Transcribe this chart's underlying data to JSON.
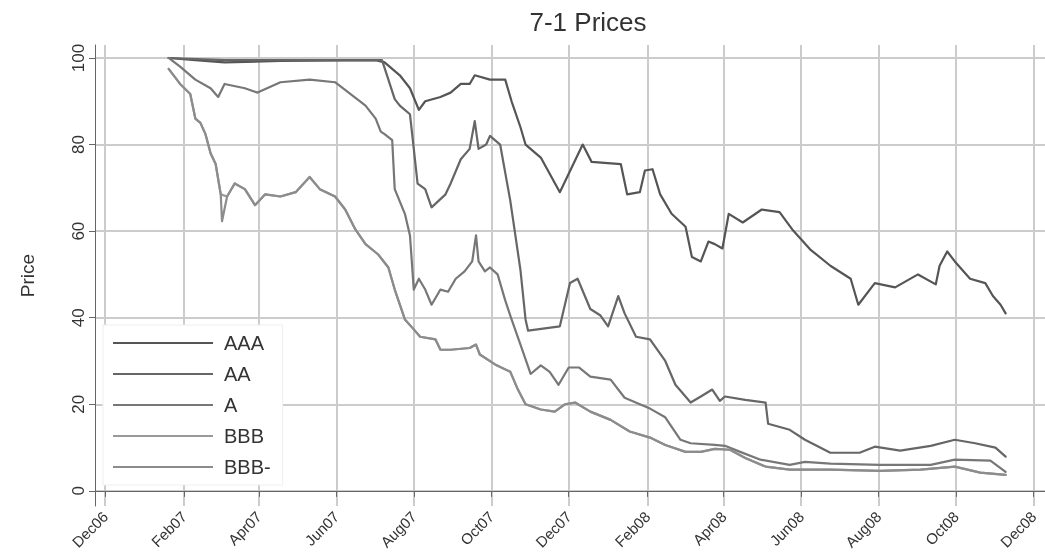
{
  "chart_data": {
    "type": "line",
    "title": "7-1 Prices",
    "ylabel": "Price",
    "xlim": [
      "2006-11-23",
      "2008-12-10"
    ],
    "ylim": [
      -3.5,
      103
    ],
    "xticks": [
      {
        "value": "2006-12-01",
        "label": "Dec06"
      },
      {
        "value": "2007-02-01",
        "label": "Feb07"
      },
      {
        "value": "2007-04-01",
        "label": "Apr07"
      },
      {
        "value": "2007-06-01",
        "label": "Jun07"
      },
      {
        "value": "2007-08-01",
        "label": "Aug07"
      },
      {
        "value": "2007-10-01",
        "label": "Oct07"
      },
      {
        "value": "2007-12-01",
        "label": "Dec07"
      },
      {
        "value": "2008-02-01",
        "label": "Feb08"
      },
      {
        "value": "2008-04-01",
        "label": "Apr08"
      },
      {
        "value": "2008-06-01",
        "label": "Jun08"
      },
      {
        "value": "2008-08-01",
        "label": "Aug08"
      },
      {
        "value": "2008-10-01",
        "label": "Oct08"
      },
      {
        "value": "2008-12-01",
        "label": "Dec08"
      }
    ],
    "yticks": [
      0,
      20,
      40,
      60,
      80,
      100
    ],
    "grid": true,
    "legend": "bottom left",
    "line_style": "solid",
    "marker": "none",
    "series": [
      {
        "name": "AAA",
        "color": "#555555",
        "x": [
          "2007-01-20",
          "2007-02-10",
          "2007-03-05",
          "2007-04-18",
          "2007-07-02",
          "2007-07-09",
          "2007-07-21",
          "2007-07-29",
          "2007-08-05",
          "2007-08-10",
          "2007-08-22",
          "2007-08-30",
          "2007-09-07",
          "2007-09-14",
          "2007-09-18",
          "2007-09-30",
          "2007-10-08",
          "2007-10-12",
          "2007-10-17",
          "2007-10-24",
          "2007-10-28",
          "2007-11-09",
          "2007-11-24",
          "2007-12-12",
          "2007-12-19",
          "2008-01-11",
          "2008-01-16",
          "2008-01-26",
          "2008-01-30",
          "2008-02-05",
          "2008-02-11",
          "2008-02-20",
          "2008-03-02",
          "2008-03-07",
          "2008-03-14",
          "2008-03-20",
          "2008-03-25",
          "2008-03-31",
          "2008-04-05",
          "2008-04-16",
          "2008-05-01",
          "2008-05-15",
          "2008-05-25",
          "2008-06-08",
          "2008-06-24",
          "2008-07-10",
          "2008-07-16",
          "2008-07-29",
          "2008-08-14",
          "2008-09-01",
          "2008-09-15",
          "2008-09-18",
          "2008-09-24",
          "2008-09-30",
          "2008-10-12",
          "2008-10-24",
          "2008-10-30",
          "2008-11-05",
          "2008-11-09"
        ],
        "values": [
          100,
          99.5,
          99,
          99.3,
          99.5,
          99,
          96,
          93,
          88,
          90,
          91,
          92,
          94,
          94,
          96,
          95,
          95,
          95,
          90,
          84,
          80,
          77,
          69,
          80,
          76,
          75.5,
          68.5,
          69,
          74,
          74.3,
          68.5,
          64,
          61,
          54,
          53,
          57.6,
          57,
          56,
          64,
          62,
          65,
          64.4,
          60.4,
          55.8,
          52,
          49,
          43,
          48,
          47,
          50,
          47.7,
          52,
          55.3,
          53,
          49,
          48,
          45,
          43,
          41
        ]
      },
      {
        "name": "AA",
        "color": "#666666",
        "x": [
          "2007-01-20",
          "2007-03-05",
          "2007-07-07",
          "2007-07-17",
          "2007-07-21",
          "2007-07-29",
          "2007-08-01",
          "2007-08-04",
          "2007-08-10",
          "2007-08-15",
          "2007-08-26",
          "2007-08-30",
          "2007-09-07",
          "2007-09-14",
          "2007-09-18",
          "2007-09-21",
          "2007-09-27",
          "2007-09-30",
          "2007-10-08",
          "2007-10-16",
          "2007-10-24",
          "2007-10-28",
          "2007-10-30",
          "2007-11-24",
          "2007-12-02",
          "2007-12-08",
          "2007-12-18",
          "2007-12-26",
          "2008-01-01",
          "2008-01-09",
          "2008-01-14",
          "2008-01-23",
          "2008-02-03",
          "2008-02-15",
          "2008-02-23",
          "2008-03-06",
          "2008-03-14",
          "2008-03-23",
          "2008-03-29",
          "2008-04-02",
          "2008-04-18",
          "2008-05-04",
          "2008-05-06",
          "2008-05-23",
          "2008-06-04",
          "2008-06-24",
          "2008-07-17",
          "2008-07-29",
          "2008-08-18",
          "2008-09-11",
          "2008-09-30",
          "2008-10-16",
          "2008-11-01",
          "2008-11-09"
        ],
        "values": [
          100,
          99.5,
          99.5,
          90.5,
          89,
          87,
          79,
          71,
          69.7,
          65.5,
          68.5,
          71,
          76.6,
          79,
          85.4,
          79,
          80,
          82,
          80,
          67,
          51,
          39.6,
          37,
          38,
          48,
          49,
          42,
          40.5,
          38,
          45,
          41,
          35.6,
          35,
          30,
          24.5,
          20.4,
          21.8,
          23.4,
          20.8,
          21.8,
          21,
          20.4,
          15.5,
          14.1,
          11.8,
          8.8,
          8.8,
          10.2,
          9.3,
          10.4,
          11.8,
          11,
          10,
          7.9
        ]
      },
      {
        "name": "A",
        "color": "#777777",
        "x": [
          "2007-01-20",
          "2007-01-29",
          "2007-02-10",
          "2007-02-22",
          "2007-02-28",
          "2007-03-05",
          "2007-03-21",
          "2007-03-31",
          "2007-04-18",
          "2007-05-11",
          "2007-05-31",
          "2007-06-12",
          "2007-06-24",
          "2007-07-02",
          "2007-07-06",
          "2007-07-09",
          "2007-07-15",
          "2007-07-17",
          "2007-07-25",
          "2007-07-29",
          "2007-08-01",
          "2007-08-05",
          "2007-08-10",
          "2007-08-15",
          "2007-08-22",
          "2007-08-28",
          "2007-09-03",
          "2007-09-10",
          "2007-09-16",
          "2007-09-19",
          "2007-09-21",
          "2007-09-26",
          "2007-09-30",
          "2007-10-06",
          "2007-10-12",
          "2007-10-17",
          "2007-10-24",
          "2007-11-01",
          "2007-11-09",
          "2007-11-16",
          "2007-11-23",
          "2007-12-01",
          "2007-12-09",
          "2007-12-18",
          "2008-01-03",
          "2008-01-14",
          "2008-01-26",
          "2008-02-03",
          "2008-02-15",
          "2008-02-27",
          "2008-03-06",
          "2008-03-25",
          "2008-04-02",
          "2008-04-14",
          "2008-04-30",
          "2008-05-23",
          "2008-06-04",
          "2008-06-24",
          "2008-08-02",
          "2008-09-11",
          "2008-09-30",
          "2008-10-28",
          "2008-11-09"
        ],
        "values": [
          100,
          98,
          95,
          93,
          91,
          94,
          93,
          92,
          94.4,
          95,
          94.4,
          91.7,
          89,
          86,
          83,
          82.4,
          81,
          69.7,
          64,
          59,
          46.5,
          49,
          46.5,
          43,
          46.5,
          46,
          49,
          50.7,
          53,
          59,
          53,
          50.7,
          51.6,
          50,
          44,
          39.6,
          33.8,
          27,
          29,
          27.5,
          24.5,
          28.5,
          28.5,
          26.4,
          25.7,
          21.5,
          20,
          19,
          17,
          11.8,
          11,
          10.6,
          10.4,
          9,
          7.2,
          6,
          6.7,
          6.3,
          6,
          6,
          7.2,
          7,
          4.4
        ]
      },
      {
        "name": "BBB",
        "color": "#999999",
        "x": [
          "2007-01-20",
          "2007-01-29",
          "2007-02-06",
          "2007-02-10",
          "2007-02-14",
          "2007-02-18",
          "2007-02-22",
          "2007-02-26",
          "2007-03-02",
          "2007-03-07",
          "2007-03-13",
          "2007-03-21",
          "2007-03-29",
          "2007-04-06",
          "2007-04-18",
          "2007-04-30",
          "2007-05-11",
          "2007-05-19",
          "2007-05-31",
          "2007-06-08",
          "2007-06-16",
          "2007-06-24",
          "2007-07-04",
          "2007-07-12",
          "2007-07-17",
          "2007-07-25",
          "2007-08-01",
          "2007-08-06",
          "2007-08-18",
          "2007-08-22",
          "2007-08-30",
          "2007-09-14",
          "2007-09-19",
          "2007-09-22",
          "2007-10-04",
          "2007-10-16",
          "2007-10-22",
          "2007-10-28",
          "2007-11-09",
          "2007-11-20",
          "2007-11-28",
          "2007-12-06",
          "2007-12-18",
          "2008-01-03",
          "2008-01-18",
          "2008-02-03",
          "2008-02-15",
          "2008-03-02",
          "2008-03-14",
          "2008-03-25",
          "2008-04-06",
          "2008-04-18",
          "2008-05-04",
          "2008-05-23",
          "2008-06-24",
          "2008-08-02",
          "2008-09-03",
          "2008-09-30",
          "2008-10-20",
          "2008-11-09"
        ],
        "values": [
          97.5,
          94,
          91.7,
          86,
          85,
          82.4,
          78,
          75.5,
          68.5,
          68,
          71,
          69.7,
          66,
          68.5,
          68,
          69,
          72.5,
          69.7,
          68,
          65,
          60.4,
          57,
          54.6,
          51.6,
          46.5,
          39.6,
          37.3,
          35.6,
          35,
          32.6,
          32.6,
          33,
          33.8,
          31.5,
          29.2,
          27.5,
          23.4,
          20,
          18.8,
          18.3,
          20,
          20.4,
          18.3,
          16.4,
          13.7,
          12.3,
          10.6,
          9,
          9,
          9.7,
          9.5,
          7.6,
          5.6,
          4.9,
          4.9,
          4.6,
          4.9,
          5.6,
          4.2,
          3.7
        ]
      },
      {
        "name": "BBB-",
        "color": "#8c8c8c",
        "x": [
          "2007-01-20",
          "2007-01-29",
          "2007-02-06",
          "2007-02-10",
          "2007-02-14",
          "2007-02-18",
          "2007-02-22",
          "2007-02-26",
          "2007-03-02",
          "2007-03-03",
          "2007-03-07",
          "2007-03-13",
          "2007-03-21",
          "2007-03-29",
          "2007-04-06",
          "2007-04-18",
          "2007-04-30",
          "2007-05-11",
          "2007-05-19",
          "2007-05-31",
          "2007-06-08",
          "2007-06-16",
          "2007-06-24",
          "2007-07-04",
          "2007-07-12",
          "2007-07-17",
          "2007-07-25",
          "2007-08-01",
          "2007-08-06",
          "2007-08-18",
          "2007-08-22",
          "2007-08-30",
          "2007-09-14",
          "2007-09-19",
          "2007-09-22",
          "2007-10-04",
          "2007-10-16",
          "2007-10-22",
          "2007-10-28",
          "2007-11-09",
          "2007-11-20",
          "2007-11-28",
          "2007-12-06",
          "2007-12-18",
          "2008-01-03",
          "2008-01-18",
          "2008-02-03",
          "2008-02-15",
          "2008-03-02",
          "2008-03-14",
          "2008-03-25",
          "2008-04-06",
          "2008-04-18",
          "2008-05-04",
          "2008-05-23",
          "2008-06-24",
          "2008-08-02",
          "2008-09-03",
          "2008-09-30",
          "2008-10-20",
          "2008-11-09"
        ],
        "values": [
          97.5,
          94,
          91.7,
          86,
          85,
          82.4,
          78,
          75.5,
          68.5,
          62.3,
          68,
          71,
          69.7,
          66,
          68.5,
          68,
          69,
          72.5,
          69.7,
          68,
          65,
          60.4,
          57,
          54.6,
          51.6,
          46.5,
          39.6,
          37.3,
          35.6,
          35,
          32.6,
          32.6,
          33,
          33.8,
          31.5,
          29.2,
          27.5,
          23.4,
          20,
          18.8,
          18.3,
          20,
          20.4,
          18.3,
          16.4,
          13.7,
          12.3,
          10.6,
          9,
          9,
          9.7,
          9.5,
          7.6,
          5.6,
          4.9,
          4.9,
          4.6,
          4.9,
          5.6,
          4.2,
          3.7
        ]
      }
    ]
  }
}
